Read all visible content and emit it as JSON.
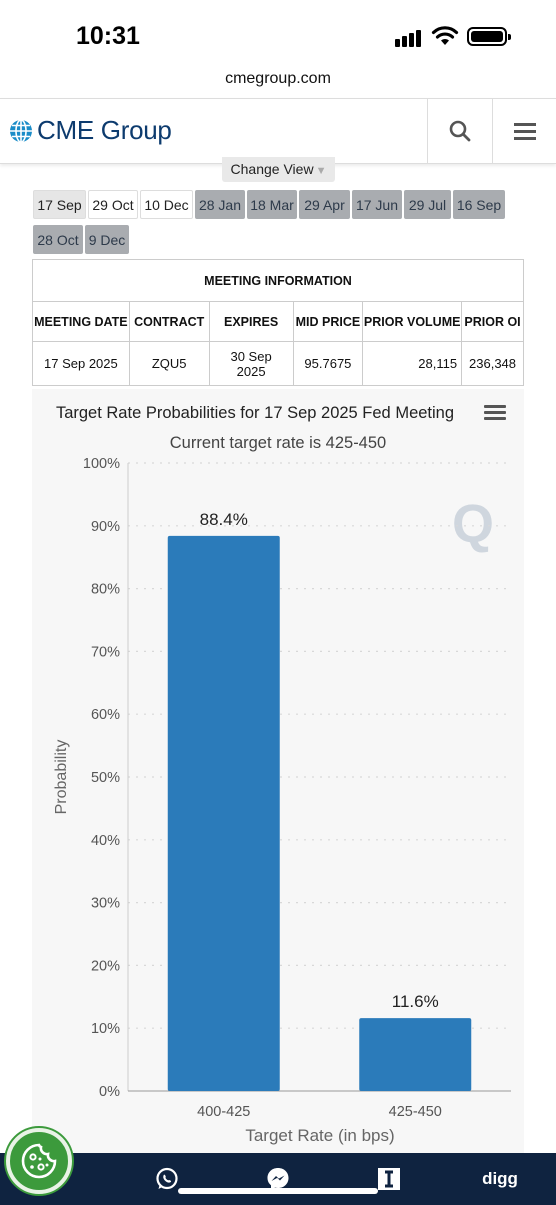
{
  "status_bar": {
    "time": "10:31"
  },
  "browser": {
    "url": "cmegroup.com"
  },
  "header": {
    "logo_text": "CME Group"
  },
  "change_view": {
    "label": "Change View"
  },
  "date_tabs": [
    {
      "label": "17 Sep",
      "state": "active"
    },
    {
      "label": "29 Oct",
      "state": "light"
    },
    {
      "label": "10 Dec",
      "state": "light"
    },
    {
      "label": "28 Jan",
      "state": "dark"
    },
    {
      "label": "18 Mar",
      "state": "dark"
    },
    {
      "label": "29 Apr",
      "state": "dark"
    },
    {
      "label": "17 Jun",
      "state": "dark"
    },
    {
      "label": "29 Jul",
      "state": "dark"
    },
    {
      "label": "16 Sep",
      "state": "dark"
    },
    {
      "label": "28 Oct",
      "state": "dark"
    },
    {
      "label": "9 Dec",
      "state": "dark"
    }
  ],
  "meeting_info": {
    "title": "MEETING INFORMATION",
    "headers": [
      "MEETING DATE",
      "CONTRACT",
      "EXPIRES",
      "MID PRICE",
      "PRIOR VOLUME",
      "PRIOR OI"
    ],
    "row": [
      "17 Sep 2025",
      "ZQU5",
      "30 Sep 2025",
      "95.7675",
      "28,115",
      "236,348"
    ]
  },
  "chart_data": {
    "type": "bar",
    "title": "Target Rate Probabilities for 17 Sep 2025 Fed Meeting",
    "subtitle": "Current target rate is 425-450",
    "xlabel": "Target Rate (in bps)",
    "ylabel": "Probability",
    "categories": [
      "400-425",
      "425-450"
    ],
    "values": [
      88.4,
      11.6
    ],
    "data_labels": [
      "88.4%",
      "11.6%"
    ],
    "ylim": [
      0,
      100
    ],
    "yticks": [
      "0%",
      "10%",
      "20%",
      "30%",
      "40%",
      "50%",
      "60%",
      "70%",
      "80%",
      "90%",
      "100%"
    ],
    "grid": true,
    "bar_color": "#2b7bba"
  },
  "icons": {
    "search": "search-icon",
    "menu": "hamburger-menu-icon",
    "chart_menu": "chart-menu-icon",
    "cookie": "cookie-icon",
    "whatsapp": "whatsapp-icon",
    "messenger": "messenger-icon",
    "instapaper": "instapaper-icon"
  },
  "bottom_bar": {
    "digg_label": "digg"
  }
}
